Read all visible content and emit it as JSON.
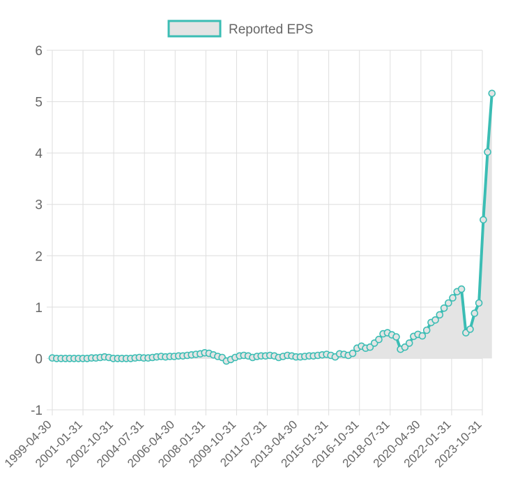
{
  "chart_data": {
    "type": "line",
    "legend": {
      "label": "Reported EPS",
      "position": "top"
    },
    "colors": {
      "line": "#3bbdb4",
      "fill": "#e4e4e4",
      "legend_fill": "#e4e4e4",
      "grid": "#dedede",
      "text": "#666666"
    },
    "grid": true,
    "ylim": [
      -1,
      6
    ],
    "y_ticks": [
      6,
      5,
      4,
      3,
      2,
      1,
      0,
      -1
    ],
    "x_tick_labels": [
      "1999-04-30",
      "2001-01-31",
      "2002-10-31",
      "2004-07-31",
      "2006-04-30",
      "2008-01-31",
      "2009-10-31",
      "2011-07-31",
      "2013-04-30",
      "2015-01-31",
      "2016-10-31",
      "2018-07-31",
      "2020-04-30",
      "2022-01-31",
      "2023-10-31"
    ],
    "series": [
      {
        "name": "Reported EPS",
        "points": [
          [
            "1999-04-30",
            0.01
          ],
          [
            "1999-07-31",
            0.0
          ],
          [
            "1999-10-31",
            0.0
          ],
          [
            "2000-01-31",
            0.0
          ],
          [
            "2000-04-30",
            0.0
          ],
          [
            "2000-07-31",
            0.0
          ],
          [
            "2000-10-31",
            0.0
          ],
          [
            "2001-01-31",
            0.0
          ],
          [
            "2001-04-30",
            0.0
          ],
          [
            "2001-07-31",
            0.01
          ],
          [
            "2001-10-31",
            0.01
          ],
          [
            "2002-01-31",
            0.02
          ],
          [
            "2002-04-30",
            0.03
          ],
          [
            "2002-07-31",
            0.02
          ],
          [
            "2002-10-31",
            0.0
          ],
          [
            "2003-01-31",
            0.0
          ],
          [
            "2003-04-30",
            0.0
          ],
          [
            "2003-07-31",
            0.0
          ],
          [
            "2003-10-31",
            0.0
          ],
          [
            "2004-01-31",
            0.01
          ],
          [
            "2004-04-30",
            0.02
          ],
          [
            "2004-07-31",
            0.01
          ],
          [
            "2004-10-31",
            0.01
          ],
          [
            "2005-01-31",
            0.02
          ],
          [
            "2005-04-30",
            0.03
          ],
          [
            "2005-07-31",
            0.04
          ],
          [
            "2005-10-31",
            0.03
          ],
          [
            "2006-01-31",
            0.04
          ],
          [
            "2006-04-30",
            0.04
          ],
          [
            "2006-07-31",
            0.05
          ],
          [
            "2006-10-31",
            0.05
          ],
          [
            "2007-01-31",
            0.06
          ],
          [
            "2007-04-30",
            0.07
          ],
          [
            "2007-07-31",
            0.08
          ],
          [
            "2007-10-31",
            0.09
          ],
          [
            "2008-01-31",
            0.11
          ],
          [
            "2008-04-30",
            0.1
          ],
          [
            "2008-07-31",
            0.07
          ],
          [
            "2008-10-31",
            0.04
          ],
          [
            "2009-01-31",
            0.02
          ],
          [
            "2009-04-30",
            -0.05
          ],
          [
            "2009-07-31",
            -0.02
          ],
          [
            "2009-10-31",
            0.02
          ],
          [
            "2010-01-31",
            0.05
          ],
          [
            "2010-04-30",
            0.06
          ],
          [
            "2010-07-31",
            0.05
          ],
          [
            "2010-10-31",
            0.02
          ],
          [
            "2011-01-31",
            0.04
          ],
          [
            "2011-04-30",
            0.05
          ],
          [
            "2011-07-31",
            0.05
          ],
          [
            "2011-10-31",
            0.06
          ],
          [
            "2012-01-31",
            0.05
          ],
          [
            "2012-04-30",
            0.02
          ],
          [
            "2012-07-31",
            0.04
          ],
          [
            "2012-10-31",
            0.06
          ],
          [
            "2013-01-31",
            0.05
          ],
          [
            "2013-04-30",
            0.03
          ],
          [
            "2013-07-31",
            0.03
          ],
          [
            "2013-10-31",
            0.04
          ],
          [
            "2014-01-31",
            0.05
          ],
          [
            "2014-04-30",
            0.05
          ],
          [
            "2014-07-31",
            0.06
          ],
          [
            "2014-10-31",
            0.07
          ],
          [
            "2015-01-31",
            0.08
          ],
          [
            "2015-04-30",
            0.06
          ],
          [
            "2015-07-31",
            0.03
          ],
          [
            "2015-10-31",
            0.09
          ],
          [
            "2016-01-31",
            0.08
          ],
          [
            "2016-04-30",
            0.06
          ],
          [
            "2016-07-31",
            0.1
          ],
          [
            "2016-10-31",
            0.2
          ],
          [
            "2017-01-31",
            0.24
          ],
          [
            "2017-04-30",
            0.2
          ],
          [
            "2017-07-31",
            0.22
          ],
          [
            "2017-10-31",
            0.3
          ],
          [
            "2018-01-31",
            0.37
          ],
          [
            "2018-04-30",
            0.48
          ],
          [
            "2018-07-31",
            0.5
          ],
          [
            "2018-10-31",
            0.46
          ],
          [
            "2019-01-31",
            0.42
          ],
          [
            "2019-04-30",
            0.18
          ],
          [
            "2019-07-31",
            0.22
          ],
          [
            "2019-10-31",
            0.3
          ],
          [
            "2020-01-31",
            0.43
          ],
          [
            "2020-04-30",
            0.47
          ],
          [
            "2020-07-31",
            0.44
          ],
          [
            "2020-10-31",
            0.55
          ],
          [
            "2021-01-31",
            0.7
          ],
          [
            "2021-04-30",
            0.75
          ],
          [
            "2021-07-31",
            0.85
          ],
          [
            "2021-10-31",
            0.98
          ],
          [
            "2022-01-31",
            1.08
          ],
          [
            "2022-04-30",
            1.18
          ],
          [
            "2022-07-31",
            1.3
          ],
          [
            "2022-10-31",
            1.35
          ],
          [
            "2023-01-31",
            0.5
          ],
          [
            "2023-04-30",
            0.57
          ],
          [
            "2023-07-31",
            0.88
          ],
          [
            "2023-10-31",
            1.08
          ],
          [
            "2024-01-31",
            2.7
          ],
          [
            "2024-04-30",
            4.02
          ],
          [
            "2024-07-31",
            5.16
          ]
        ]
      }
    ]
  }
}
